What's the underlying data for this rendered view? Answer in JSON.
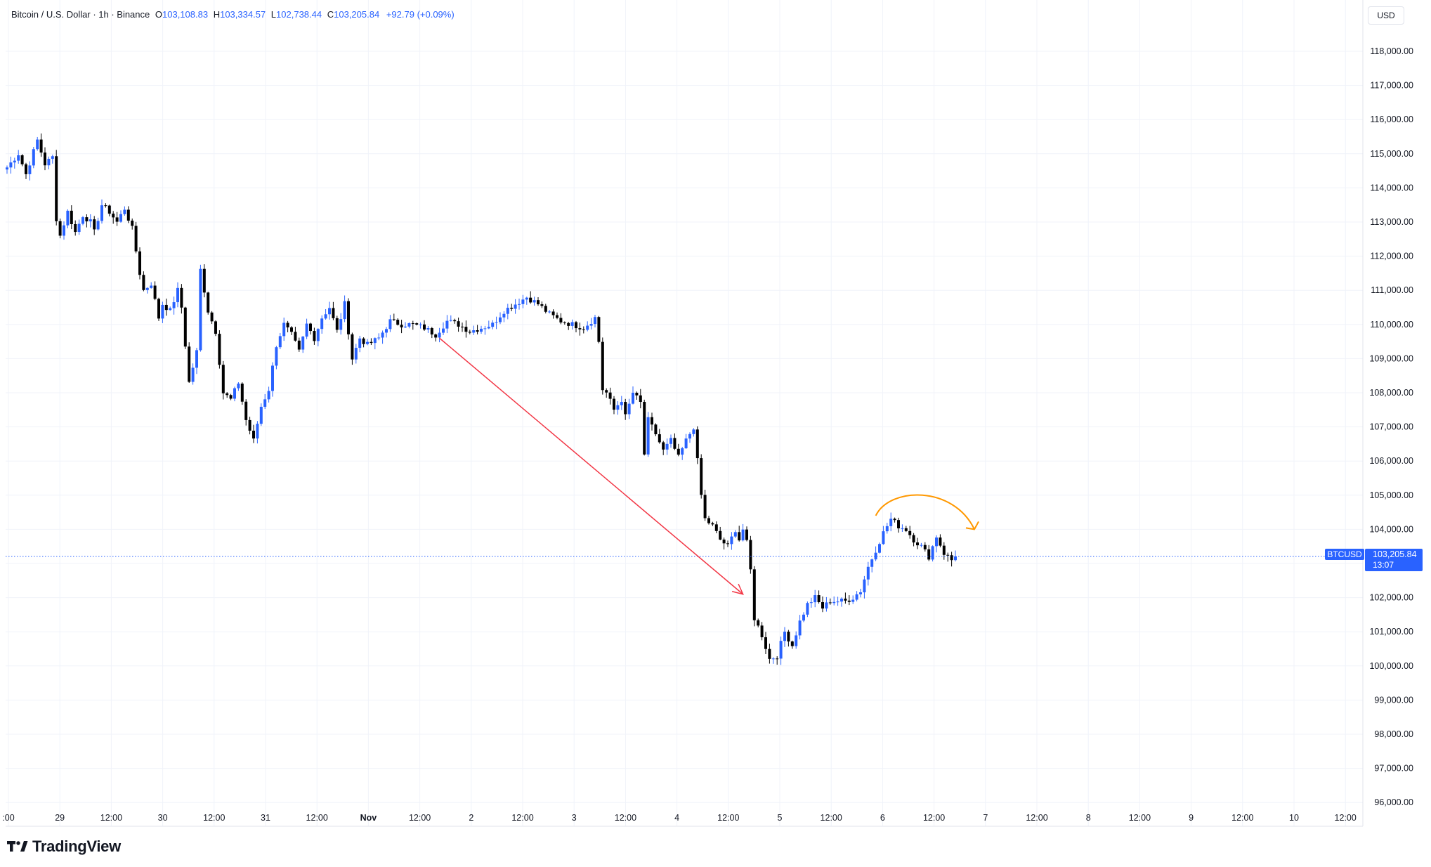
{
  "header": {
    "symbol": "Bitcoin / U.S. Dollar · 1h · Binance",
    "open_key": "O",
    "open": "103,108.83",
    "high_key": "H",
    "high": "103,334.57",
    "low_key": "L",
    "low": "102,738.44",
    "close_key": "C",
    "close": "103,205.84",
    "change": "+92.79 (+0.09%)"
  },
  "currency": "USD",
  "brand": "TradingView",
  "price_label": {
    "ticker": "BTCUSD",
    "price": "103,205.84",
    "countdown": "13:07"
  },
  "colors": {
    "up": "#2962ff",
    "down": "#000000",
    "arrow_down": "#f23645",
    "arrow_curve": "#ff9800",
    "price_line": "#2962ff"
  },
  "chart_data": {
    "type": "candlestick",
    "title": "Bitcoin / U.S. Dollar · 1h · Binance",
    "ylim": [
      95700,
      118700
    ],
    "y_ticks": [
      "118,000.00",
      "117,000.00",
      "116,000.00",
      "115,000.00",
      "114,000.00",
      "113,000.00",
      "112,000.00",
      "111,000.00",
      "110,000.00",
      "109,000.00",
      "108,000.00",
      "107,000.00",
      "106,000.00",
      "105,000.00",
      "104,000.00",
      "103,000.00",
      "102,000.00",
      "101,000.00",
      "100,000.00",
      "99,000.00",
      "98,000.00",
      "97,000.00",
      "96,000.00"
    ],
    "x_ticks": [
      ":00",
      "29",
      "12:00",
      "30",
      "12:00",
      "31",
      "12:00",
      "Nov",
      "12:00",
      "2",
      "12:00",
      "3",
      "12:00",
      "4",
      "12:00",
      "5",
      "12:00",
      "6",
      "12:00",
      "7",
      "12:00",
      "8",
      "12:00",
      "9",
      "12:00",
      "10",
      "12:00"
    ],
    "grid": true,
    "last_price": 103205.84,
    "path_points": [
      [
        0,
        114600
      ],
      [
        3,
        115000
      ],
      [
        5,
        114400
      ],
      [
        8,
        115400
      ],
      [
        10,
        114700
      ],
      [
        12,
        114900
      ],
      [
        13,
        113100
      ],
      [
        14,
        112600
      ],
      [
        16,
        113300
      ],
      [
        18,
        112700
      ],
      [
        20,
        113200
      ],
      [
        22,
        113000
      ],
      [
        23,
        112700
      ],
      [
        25,
        113500
      ],
      [
        27,
        113300
      ],
      [
        29,
        113000
      ],
      [
        31,
        113400
      ],
      [
        33,
        112800
      ],
      [
        35,
        111500
      ],
      [
        36,
        111000
      ],
      [
        38,
        111200
      ],
      [
        40,
        110200
      ],
      [
        41,
        110600
      ],
      [
        43,
        110400
      ],
      [
        45,
        111000
      ],
      [
        46,
        110500
      ],
      [
        48,
        108300
      ],
      [
        50,
        109200
      ],
      [
        51,
        111600
      ],
      [
        53,
        110400
      ],
      [
        55,
        109800
      ],
      [
        57,
        108000
      ],
      [
        59,
        107800
      ],
      [
        61,
        108300
      ],
      [
        63,
        107200
      ],
      [
        65,
        106600
      ],
      [
        67,
        107600
      ],
      [
        69,
        108100
      ],
      [
        71,
        109400
      ],
      [
        73,
        110000
      ],
      [
        75,
        109700
      ],
      [
        77,
        109200
      ],
      [
        79,
        110000
      ],
      [
        81,
        109600
      ],
      [
        83,
        110200
      ],
      [
        85,
        110500
      ],
      [
        87,
        109800
      ],
      [
        89,
        110600
      ],
      [
        91,
        109000
      ],
      [
        93,
        109600
      ],
      [
        95,
        109400
      ],
      [
        98,
        109600
      ],
      [
        101,
        110100
      ],
      [
        104,
        110000
      ],
      [
        107,
        110000
      ],
      [
        110,
        109900
      ],
      [
        113,
        109700
      ],
      [
        116,
        110100
      ],
      [
        119,
        110000
      ],
      [
        122,
        109800
      ],
      [
        125,
        109900
      ],
      [
        128,
        110000
      ],
      [
        131,
        110400
      ],
      [
        134,
        110600
      ],
      [
        137,
        110800
      ],
      [
        140,
        110600
      ],
      [
        143,
        110300
      ],
      [
        146,
        110100
      ],
      [
        149,
        110000
      ],
      [
        152,
        109900
      ],
      [
        155,
        110200
      ],
      [
        156,
        109500
      ],
      [
        157,
        108100
      ],
      [
        158,
        108000
      ],
      [
        160,
        107500
      ],
      [
        162,
        107800
      ],
      [
        163,
        107300
      ],
      [
        165,
        108000
      ],
      [
        167,
        107700
      ],
      [
        168,
        106200
      ],
      [
        169,
        107200
      ],
      [
        171,
        106800
      ],
      [
        173,
        106300
      ],
      [
        175,
        106600
      ],
      [
        177,
        106100
      ],
      [
        179,
        106600
      ],
      [
        181,
        107000
      ],
      [
        182,
        106000
      ],
      [
        183,
        105000
      ],
      [
        184,
        104300
      ],
      [
        186,
        104100
      ],
      [
        188,
        103700
      ],
      [
        190,
        103500
      ],
      [
        192,
        104000
      ],
      [
        193,
        103700
      ],
      [
        194,
        104000
      ],
      [
        195,
        103600
      ],
      [
        196,
        102800
      ],
      [
        197,
        101400
      ],
      [
        199,
        100900
      ],
      [
        201,
        100200
      ],
      [
        203,
        100300
      ],
      [
        205,
        101000
      ],
      [
        207,
        100600
      ],
      [
        209,
        101300
      ],
      [
        211,
        101800
      ],
      [
        213,
        102000
      ],
      [
        215,
        101700
      ],
      [
        217,
        101900
      ],
      [
        219,
        101900
      ],
      [
        221,
        101900
      ],
      [
        223,
        102000
      ],
      [
        225,
        102200
      ],
      [
        227,
        102900
      ],
      [
        229,
        103400
      ],
      [
        231,
        103900
      ],
      [
        233,
        104300
      ],
      [
        235,
        104100
      ],
      [
        237,
        104000
      ],
      [
        239,
        103700
      ],
      [
        241,
        103500
      ],
      [
        243,
        103200
      ],
      [
        245,
        103800
      ],
      [
        247,
        103300
      ],
      [
        249,
        103100
      ],
      [
        250,
        103205.84
      ]
    ],
    "annotations": [
      {
        "type": "arrow",
        "color": "red",
        "from": [
          114,
          109600
        ],
        "to": [
          194,
          102100
        ]
      },
      {
        "type": "curved-arrow",
        "color": "orange",
        "from": [
          229,
          104400
        ],
        "peak": [
          239,
          105000
        ],
        "to": [
          255,
          104000
        ]
      }
    ]
  }
}
